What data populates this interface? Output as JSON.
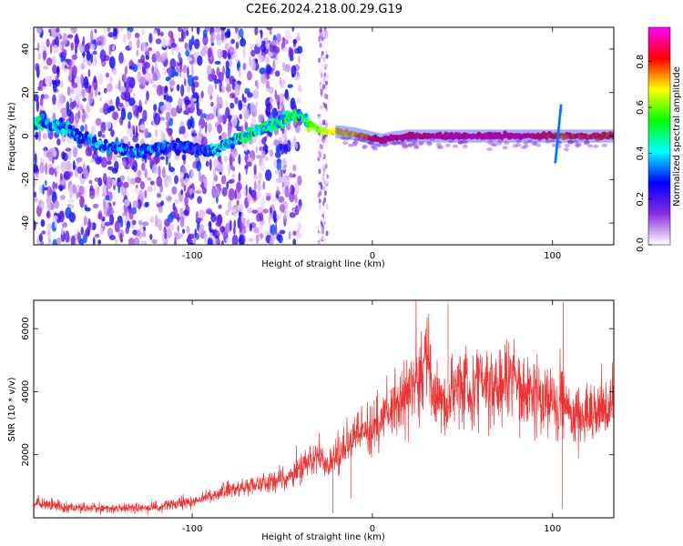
{
  "title": "C2E6.2024.218.00.29.G19",
  "chart_data": [
    {
      "type": "heatmap",
      "xlabel": "Height of straight line (km)",
      "ylabel": "Frequency (Hz)",
      "xlim": [
        -188,
        134
      ],
      "ylim": [
        -50,
        50
      ],
      "x_ticks": [
        -100,
        0,
        100
      ],
      "y_ticks": [
        -40,
        -20,
        0,
        20,
        40
      ],
      "colorbar": {
        "label": "Normalized spectral amplitude",
        "range": [
          0,
          0.95
        ],
        "ticks": [
          "0.0",
          "0.2",
          "0.4",
          "0.6",
          "0.8"
        ],
        "tick_values": [
          0,
          0.2,
          0.4,
          0.6,
          0.8
        ],
        "colors": [
          "#ffffff",
          "#8a2be2",
          "#0000ff",
          "#00ffff",
          "#00ff00",
          "#ffff00",
          "#ff0000",
          "#ff00ff"
        ]
      },
      "ridge": {
        "x": [
          -188,
          -175,
          -165,
          -150,
          -140,
          -130,
          -120,
          -110,
          -100,
          -95,
          -90,
          -85,
          -80,
          -70,
          -60,
          -50,
          -45,
          -40,
          -35,
          -30,
          -25,
          -20,
          -10,
          0,
          5,
          10,
          20,
          40,
          60,
          80,
          90,
          100,
          105,
          110,
          120,
          134
        ],
        "y": [
          6,
          5,
          1,
          -4,
          -6,
          -7,
          -6,
          -5,
          -6,
          -7,
          -7,
          -6,
          -3,
          0,
          4,
          7,
          9,
          10,
          6,
          3,
          2,
          2,
          1,
          -1,
          -2,
          -1,
          0,
          0,
          0,
          0,
          0,
          0,
          0,
          0,
          0,
          0
        ],
        "amp": [
          0.45,
          0.45,
          0.4,
          0.35,
          0.35,
          0.35,
          0.35,
          0.3,
          0.3,
          0.3,
          0.35,
          0.4,
          0.45,
          0.5,
          0.5,
          0.5,
          0.55,
          0.45,
          0.6,
          0.65,
          0.7,
          0.72,
          0.75,
          0.85,
          0.9,
          0.9,
          0.9,
          0.92,
          0.92,
          0.92,
          0.9,
          0.85,
          0.8,
          0.85,
          0.85,
          0.85
        ]
      }
    },
    {
      "type": "line",
      "xlabel": "Height of straight line (km)",
      "ylabel": "SNR (10 * v/v)",
      "xlim": [
        -188,
        134
      ],
      "ylim": [
        0,
        6900
      ],
      "x_ticks": [
        -100,
        0,
        100
      ],
      "y_ticks": [
        2000,
        4000,
        6000
      ],
      "series": [
        {
          "color": "#ee3333",
          "x": [
            -188,
            -180,
            -170,
            -160,
            -150,
            -140,
            -130,
            -120,
            -110,
            -100,
            -95,
            -90,
            -85,
            -80,
            -75,
            -70,
            -65,
            -60,
            -55,
            -50,
            -45,
            -40,
            -35,
            -30,
            -25,
            -20,
            -15,
            -10,
            -5,
            0,
            5,
            10,
            15,
            20,
            25,
            28,
            30,
            33,
            35,
            40,
            45,
            50,
            55,
            60,
            65,
            70,
            75,
            80,
            85,
            90,
            95,
            100,
            103,
            105,
            107,
            110,
            115,
            120,
            125,
            130,
            134
          ],
          "y": [
            450,
            400,
            350,
            320,
            300,
            300,
            320,
            350,
            400,
            500,
            600,
            700,
            800,
            900,
            950,
            1000,
            1050,
            1100,
            1150,
            1200,
            1300,
            1600,
            1800,
            2000,
            1600,
            1900,
            2200,
            2500,
            2700,
            2800,
            3200,
            3500,
            3800,
            4000,
            4200,
            4800,
            5600,
            4400,
            3800,
            3600,
            4100,
            4200,
            4000,
            4600,
            4300,
            4100,
            4500,
            4400,
            4000,
            4100,
            3700,
            3800,
            3000,
            4300,
            3600,
            3300,
            3200,
            3300,
            3400,
            3300,
            3700
          ]
        }
      ]
    }
  ]
}
